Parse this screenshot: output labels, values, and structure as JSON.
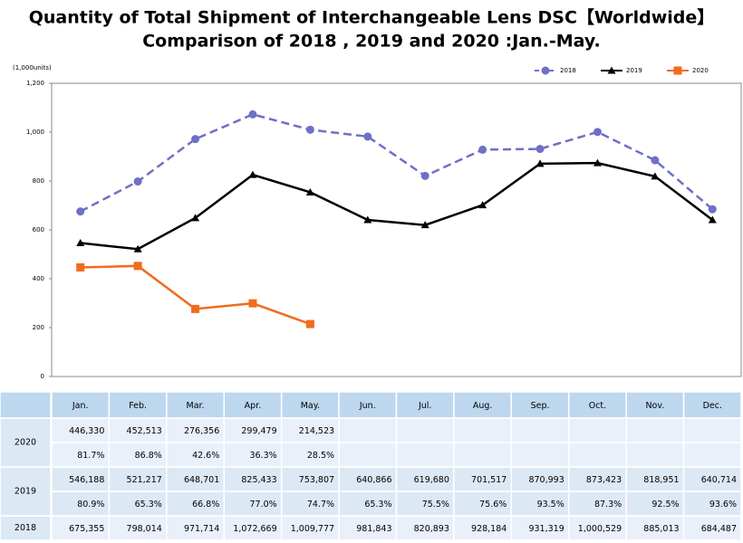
{
  "chart_data": {
    "type": "line",
    "title": "Quantity of Total Shipment of Interchangeable Lens DSC【Worldwide】",
    "subtitle": "Comparison of 2018 , 2019 and 2020 :Jan.-May.",
    "y_label": "(1,000units)",
    "categories": [
      "Jan.",
      "Feb.",
      "Mar.",
      "Apr.",
      "May.",
      "Jun.",
      "Jul.",
      "Aug.",
      "Sep.",
      "Oct.",
      "Nov.",
      "Dec."
    ],
    "ylim": [
      0,
      1200
    ],
    "yticks": [
      0,
      200,
      400,
      600,
      800,
      {
        "value": 1000,
        "label": "1,000"
      },
      {
        "value": 1200,
        "label": "1,200"
      }
    ],
    "legend": "top-right",
    "series": [
      {
        "name": "2018",
        "color": "#6f6fc8",
        "line_style": "dashed",
        "marker": "circle",
        "values": [
          675.355,
          798.014,
          971.714,
          1072.669,
          1009.777,
          981.843,
          820.893,
          928.184,
          931.319,
          1000.529,
          885.013,
          684.487
        ]
      },
      {
        "name": "2019",
        "color": "#000000",
        "line_style": "solid",
        "marker": "triangle",
        "values": [
          546.188,
          521.217,
          648.701,
          825.433,
          753.807,
          640.866,
          619.68,
          701.517,
          870.993,
          873.423,
          818.951,
          640.714
        ]
      },
      {
        "name": "2020",
        "color": "#f26b1d",
        "line_style": "solid",
        "marker": "square",
        "values": [
          446.33,
          452.513,
          276.356,
          299.479,
          214.523,
          null,
          null,
          null,
          null,
          null,
          null,
          null
        ]
      }
    ]
  },
  "table": {
    "rows": [
      {
        "label": "2020",
        "values": [
          "446,330",
          "452,513",
          "276,356",
          "299,479",
          "214,523"
        ],
        "ratios": [
          "81.7%",
          "86.8%",
          "42.6%",
          "36.3%",
          "28.5%"
        ]
      },
      {
        "label": "2019",
        "values": [
          "546,188",
          "521,217",
          "648,701",
          "825,433",
          "753,807",
          "640,866",
          "619,680",
          "701,517",
          "870,993",
          "873,423",
          "818,951",
          "640,714"
        ],
        "ratios": [
          "80.9%",
          "65.3%",
          "66.8%",
          "77.0%",
          "74.7%",
          "65.3%",
          "75.5%",
          "75.6%",
          "93.5%",
          "87.3%",
          "92.5%",
          "93.6%"
        ]
      },
      {
        "label": "2018",
        "values": [
          "675,355",
          "798,014",
          "971,714",
          "1,072,669",
          "1,009,777",
          "981,843",
          "820,893",
          "928,184",
          "931,319",
          "1,000,529",
          "885,013",
          "684,487"
        ]
      }
    ]
  }
}
